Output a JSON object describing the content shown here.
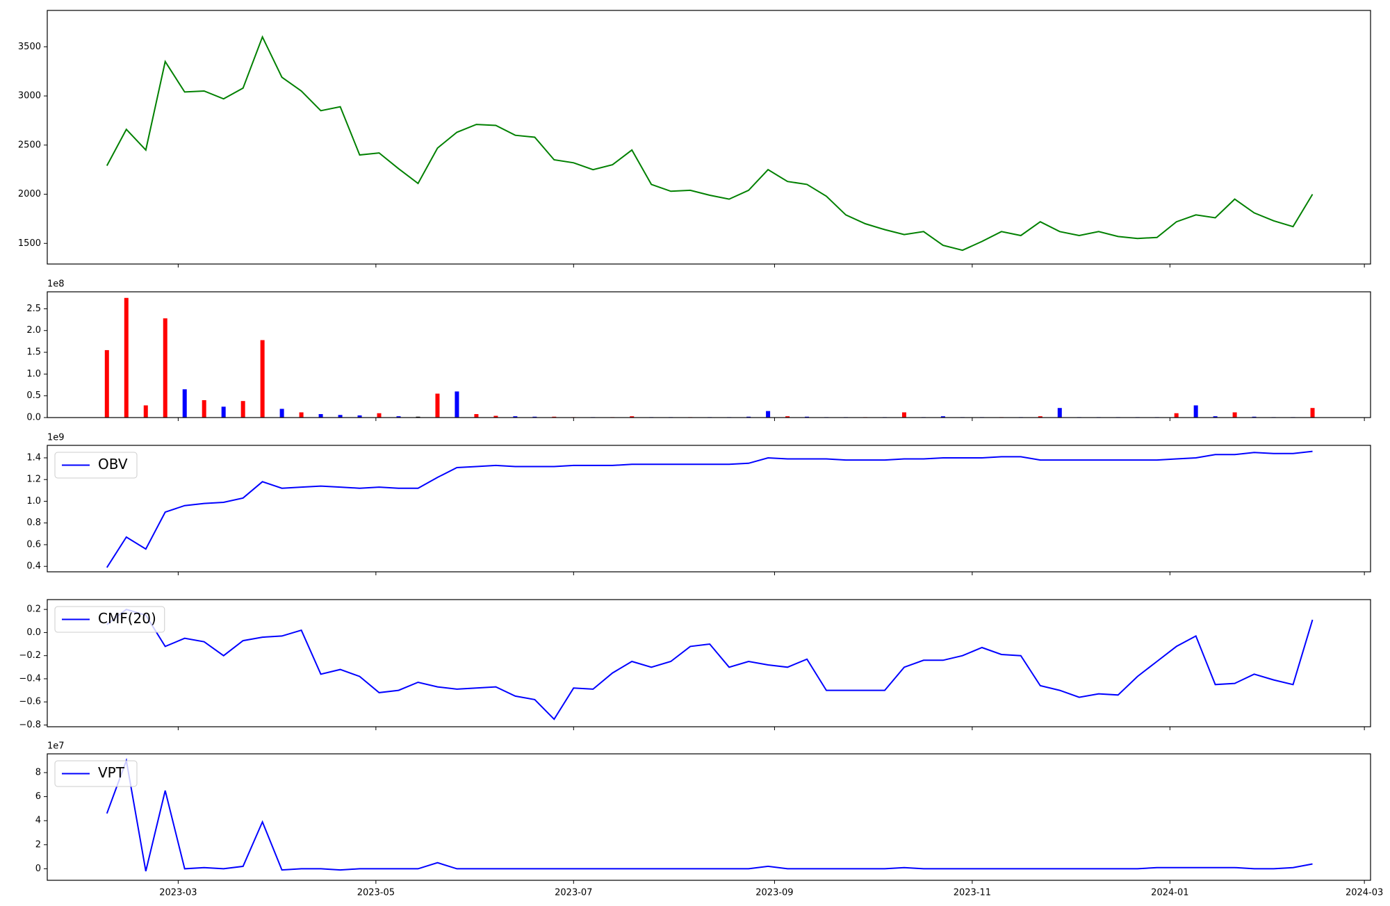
{
  "chart_data": [
    {
      "type": "line",
      "color": "#008000",
      "values": [
        2290,
        2660,
        2450,
        3350,
        3040,
        3050,
        2970,
        3080,
        3600,
        3190,
        3050,
        2850,
        2890,
        2400,
        2420,
        2260,
        2110,
        2470,
        2630,
        2710,
        2700,
        2600,
        2580,
        2350,
        2320,
        2250,
        2300,
        2450,
        2100,
        2030,
        2040,
        1990,
        1950,
        2040,
        2250,
        2130,
        2100,
        1980,
        1790,
        1700,
        1640,
        1590,
        1620,
        1480,
        1430,
        1520,
        1620,
        1580,
        1720,
        1620,
        1580,
        1620,
        1570,
        1550,
        1560,
        1720,
        1790,
        1760,
        1950,
        1810,
        1730,
        1670,
        2000
      ],
      "ylim": [
        1290,
        3870
      ],
      "yticks": [
        1500,
        2000,
        2500,
        3000,
        3500
      ]
    },
    {
      "type": "bar",
      "offset_label": "1e8",
      "values": [
        155000000,
        275000000,
        28000000,
        228000000,
        65000000,
        40000000,
        25000000,
        38000000,
        178000000,
        20000000,
        12000000,
        8000000,
        6000000,
        5000000,
        10000000,
        3000000,
        2000000,
        55000000,
        60000000,
        8000000,
        4000000,
        3000000,
        2000000,
        2000000,
        1000000,
        1000000,
        1000000,
        3000000,
        1000000,
        1000000,
        1000000,
        1000000,
        1000000,
        2000000,
        15000000,
        3000000,
        2000000,
        1000000,
        1000000,
        1000000,
        1000000,
        12000000,
        1000000,
        3000000,
        1000000,
        1000000,
        1000000,
        1000000,
        3000000,
        22000000,
        1000000,
        1000000,
        1000000,
        1000000,
        1000000,
        10000000,
        28000000,
        3000000,
        12000000,
        2000000,
        1000000,
        1000000,
        22000000
      ],
      "colors": [
        "#ff0000",
        "#ff0000",
        "#ff0000",
        "#ff0000",
        "#0000ff",
        "#ff0000",
        "#0000ff",
        "#ff0000",
        "#ff0000",
        "#0000ff",
        "#ff0000",
        "#0000ff",
        "#0000ff",
        "#0000ff",
        "#ff0000",
        "#0000ff",
        "#000000",
        "#ff0000",
        "#0000ff",
        "#ff0000",
        "#ff0000",
        "#0000ff",
        "#0000ff",
        "#ff0000",
        "#ff0000",
        "#0000ff",
        "#ff0000",
        "#ff0000",
        "#0000ff",
        "#0000ff",
        "#ff0000",
        "#0000ff",
        "#0000ff",
        "#0000ff",
        "#0000ff",
        "#ff0000",
        "#0000ff",
        "#0000ff",
        "#0000ff",
        "#ff0000",
        "#0000ff",
        "#ff0000",
        "#0000ff",
        "#0000ff",
        "#0000ff",
        "#0000ff",
        "#ff0000",
        "#0000ff",
        "#ff0000",
        "#0000ff",
        "#0000ff",
        "#0000ff",
        "#0000ff",
        "#0000ff",
        "#0000ff",
        "#ff0000",
        "#0000ff",
        "#0000ff",
        "#ff0000",
        "#0000ff",
        "#0000ff",
        "#0000ff",
        "#ff0000"
      ],
      "ylim": [
        0,
        289000000
      ],
      "yticks": [
        {
          "value": 0,
          "label": "0.0"
        },
        {
          "value": 50000000,
          "label": "0.5"
        },
        {
          "value": 100000000,
          "label": "1.0"
        },
        {
          "value": 150000000,
          "label": "1.5"
        },
        {
          "value": 200000000,
          "label": "2.0"
        },
        {
          "value": 250000000,
          "label": "2.5"
        }
      ]
    },
    {
      "type": "line",
      "offset_label": "1e9",
      "legend": "upper left",
      "series": [
        {
          "name": "OBV",
          "color": "#0000ff",
          "values": [
            390000000,
            670000000,
            560000000,
            900000000,
            960000000,
            980000000,
            990000000,
            1030000000,
            1180000000,
            1120000000,
            1130000000,
            1140000000,
            1130000000,
            1120000000,
            1130000000,
            1120000000,
            1120000000,
            1220000000,
            1310000000,
            1320000000,
            1330000000,
            1320000000,
            1320000000,
            1320000000,
            1330000000,
            1330000000,
            1330000000,
            1340000000,
            1340000000,
            1340000000,
            1340000000,
            1340000000,
            1340000000,
            1350000000,
            1400000000,
            1390000000,
            1390000000,
            1390000000,
            1380000000,
            1380000000,
            1380000000,
            1390000000,
            1390000000,
            1400000000,
            1400000000,
            1400000000,
            1410000000,
            1410000000,
            1380000000,
            1380000000,
            1380000000,
            1380000000,
            1380000000,
            1380000000,
            1380000000,
            1390000000,
            1400000000,
            1430000000,
            1430000000,
            1450000000,
            1440000000,
            1440000000,
            1460000000
          ]
        }
      ],
      "ylim": [
        350000000,
        1515000000
      ],
      "yticks": [
        {
          "value": 400000000,
          "label": "0.4"
        },
        {
          "value": 600000000,
          "label": "0.6"
        },
        {
          "value": 800000000,
          "label": "0.8"
        },
        {
          "value": 1000000000,
          "label": "1.0"
        },
        {
          "value": 1200000000,
          "label": "1.2"
        },
        {
          "value": 1400000000,
          "label": "1.4"
        }
      ]
    },
    {
      "type": "line",
      "legend": "upper left",
      "series": [
        {
          "name": "CMF(20)",
          "color": "#0000ff",
          "values": [
            0.07,
            0.2,
            0.15,
            -0.12,
            -0.05,
            -0.08,
            -0.2,
            -0.07,
            -0.04,
            -0.03,
            0.02,
            -0.36,
            -0.32,
            -0.38,
            -0.52,
            -0.5,
            -0.43,
            -0.47,
            -0.49,
            -0.48,
            -0.47,
            -0.55,
            -0.58,
            -0.75,
            -0.48,
            -0.49,
            -0.35,
            -0.25,
            -0.3,
            -0.25,
            -0.12,
            -0.1,
            -0.3,
            -0.25,
            -0.28,
            -0.3,
            -0.23,
            -0.5,
            -0.5,
            -0.5,
            -0.5,
            -0.3,
            -0.24,
            -0.24,
            -0.2,
            -0.13,
            -0.19,
            -0.2,
            -0.46,
            -0.5,
            -0.56,
            -0.53,
            -0.54,
            -0.38,
            -0.25,
            -0.12,
            -0.03,
            -0.45,
            -0.44,
            -0.36,
            -0.41,
            -0.45,
            0.11
          ]
        }
      ],
      "ylim": [
        -0.815,
        0.285
      ],
      "yticks": [
        {
          "value": -0.8,
          "label": "−0.8"
        },
        {
          "value": -0.6,
          "label": "−0.6"
        },
        {
          "value": -0.4,
          "label": "−0.4"
        },
        {
          "value": -0.2,
          "label": "−0.2"
        },
        {
          "value": 0,
          "label": "0.0"
        },
        0.2
      ]
    },
    {
      "type": "line",
      "offset_label": "1e7",
      "legend": "upper left",
      "series": [
        {
          "name": "VPT",
          "color": "#0000ff",
          "values": [
            46000000,
            90000000,
            -2000000,
            65000000,
            0,
            1000000,
            0,
            2000000,
            39000000,
            -1000000,
            0,
            0,
            -1000000,
            0,
            0,
            0,
            0,
            5000000,
            0,
            0,
            0,
            0,
            0,
            0,
            0,
            0,
            0,
            0,
            0,
            0,
            0,
            0,
            0,
            0,
            2000000,
            0,
            0,
            0,
            0,
            0,
            0,
            1000000,
            0,
            0,
            0,
            0,
            0,
            0,
            0,
            0,
            0,
            0,
            0,
            0,
            1000000,
            1000000,
            1000000,
            1000000,
            1000000,
            0,
            0,
            1000000,
            4000000
          ]
        }
      ],
      "ylim": [
        -9600000,
        95600000
      ],
      "yticks": [
        {
          "value": 0,
          "label": "0"
        },
        {
          "value": 20000000,
          "label": "2"
        },
        {
          "value": 40000000,
          "label": "4"
        },
        {
          "value": 60000000,
          "label": "6"
        },
        {
          "value": 80000000,
          "label": "8"
        }
      ],
      "x": [
        19395,
        19401,
        19407,
        19413,
        19419,
        19425,
        19431,
        19437,
        19443,
        19449,
        19455,
        19461,
        19467,
        19473,
        19479,
        19485,
        19491,
        19497,
        19503,
        19509,
        19515,
        19521,
        19527,
        19533,
        19539,
        19545,
        19551,
        19557,
        19563,
        19569,
        19575,
        19581,
        19587,
        19593,
        19599,
        19605,
        19611,
        19617,
        19623,
        19629,
        19635,
        19641,
        19647,
        19653,
        19659,
        19665,
        19671,
        19677,
        19683,
        19689,
        19695,
        19701,
        19707,
        19713,
        19719,
        19725,
        19731,
        19737,
        19743,
        19749,
        19755,
        19761,
        19767
      ],
      "xlim": [
        19376.6,
        19784.9
      ],
      "xticks": [
        {
          "value": 19417,
          "label": "2023-03"
        },
        {
          "value": 19478,
          "label": "2023-05"
        },
        {
          "value": 19539,
          "label": "2023-07"
        },
        {
          "value": 19601,
          "label": "2023-09"
        },
        {
          "value": 19662,
          "label": "2023-11"
        },
        {
          "value": 19723,
          "label": "2024-01"
        },
        {
          "value": 19783,
          "label": "2024-03"
        }
      ]
    }
  ]
}
